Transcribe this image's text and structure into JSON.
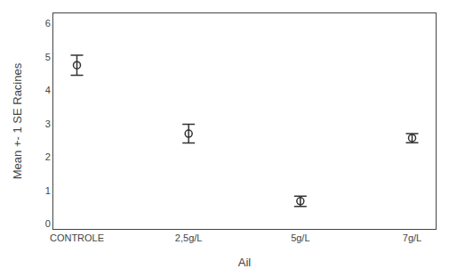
{
  "chart_data": {
    "type": "errorbar",
    "categories": [
      "CONTROLE",
      "2,5g/L",
      "5g/L",
      "7g/L"
    ],
    "values": [
      4.75,
      2.7,
      0.68,
      2.57
    ],
    "lower": [
      4.45,
      2.42,
      0.52,
      2.43
    ],
    "upper": [
      5.05,
      2.98,
      0.83,
      2.7
    ],
    "xlabel": "Ail",
    "ylabel": "Mean +- 1 SE Racines",
    "ylim": [
      -0.15,
      6.3
    ],
    "yticks": [
      0,
      1,
      2,
      3,
      4,
      5,
      6
    ],
    "color": "#333333",
    "marker": "circle-open",
    "grid": false
  }
}
